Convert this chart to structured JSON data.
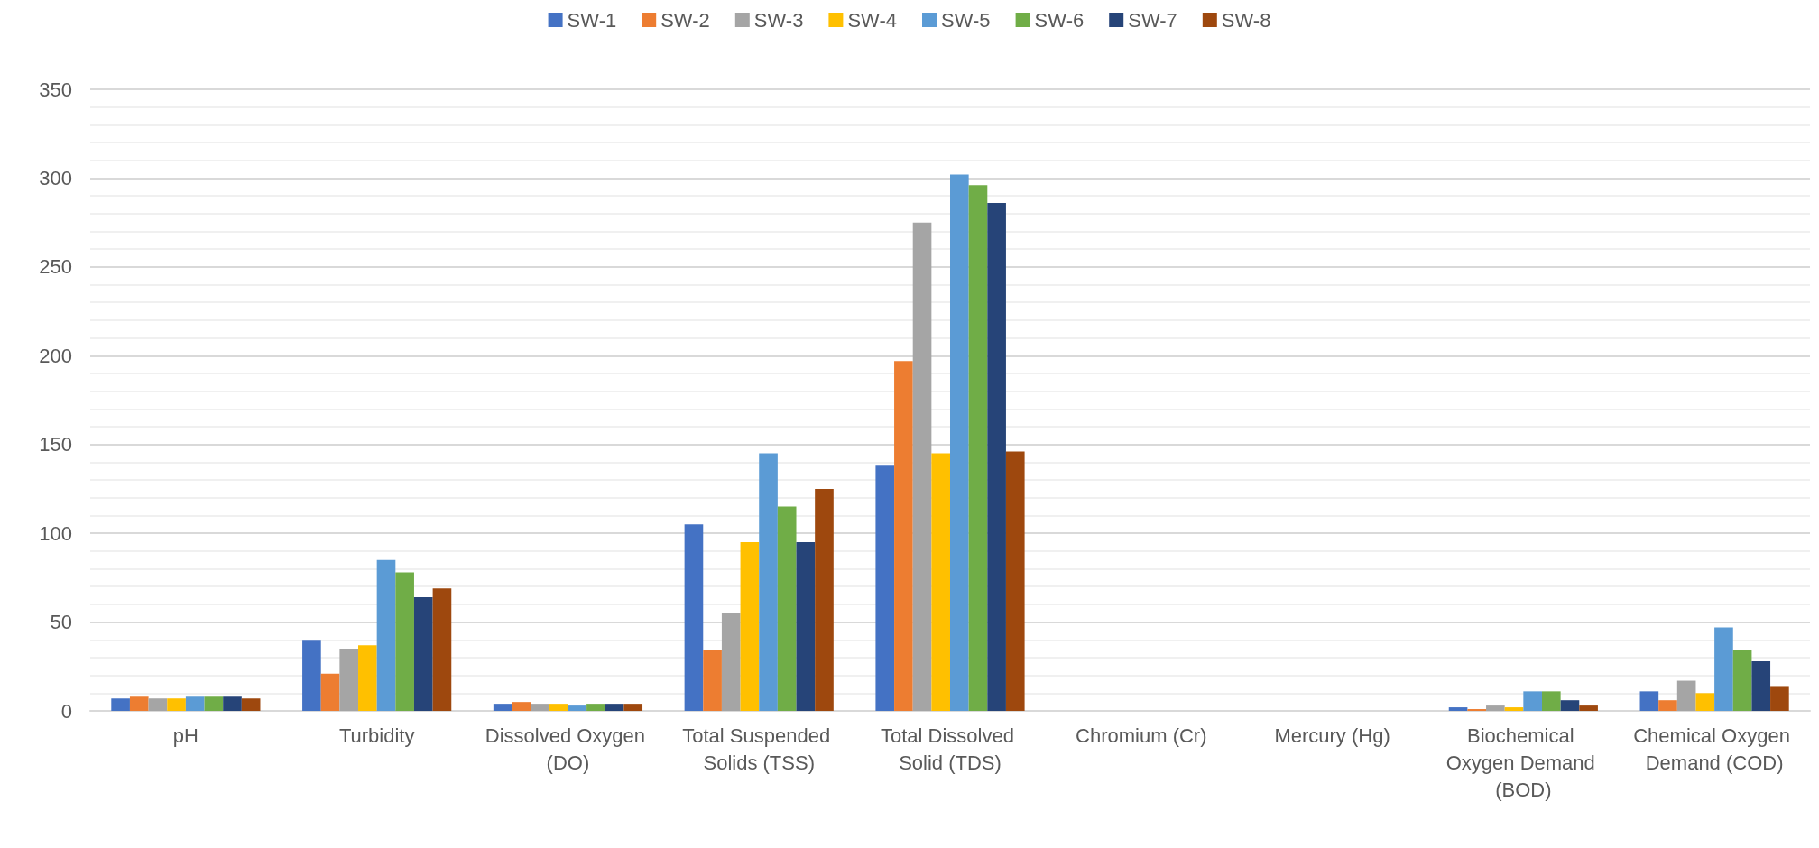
{
  "chart_data": {
    "type": "bar",
    "categories": [
      "pH",
      "Turbidity",
      "Dissolved Oxygen (DO)",
      "Total Suspended Solids (TSS)",
      "Total Dissolved Solid (TDS)",
      "Chromium (Cr)",
      "Mercury (Hg)",
      "Biochemical Oxygen Demand (BOD)",
      "Chemical Oxygen Demand (COD)"
    ],
    "series": [
      {
        "name": "SW-1",
        "color": "#4472c4",
        "values": [
          7,
          40,
          4,
          105,
          138,
          0,
          0,
          2,
          11
        ]
      },
      {
        "name": "SW-2",
        "color": "#ed7d31",
        "values": [
          8,
          21,
          5,
          34,
          197,
          0,
          0,
          1,
          6
        ]
      },
      {
        "name": "SW-3",
        "color": "#a5a5a5",
        "values": [
          7,
          35,
          4,
          55,
          275,
          0,
          0,
          3,
          17
        ]
      },
      {
        "name": "SW-4",
        "color": "#ffc000",
        "values": [
          7,
          37,
          4,
          95,
          145,
          0,
          0,
          2,
          10
        ]
      },
      {
        "name": "SW-5",
        "color": "#5b9bd5",
        "values": [
          8,
          85,
          3,
          145,
          302,
          0,
          0,
          11,
          47
        ]
      },
      {
        "name": "SW-6",
        "color": "#70ad47",
        "values": [
          8,
          78,
          4,
          115,
          296,
          0,
          0,
          11,
          34
        ]
      },
      {
        "name": "SW-7",
        "color": "#264478",
        "values": [
          8,
          64,
          4,
          95,
          286,
          0,
          0,
          6,
          28
        ]
      },
      {
        "name": "SW-8",
        "color": "#9e480e",
        "values": [
          7,
          69,
          4,
          125,
          146,
          0,
          0,
          3,
          14
        ]
      }
    ],
    "ylim": [
      0,
      350
    ],
    "yticks": [
      0,
      50,
      100,
      150,
      200,
      250,
      300,
      350
    ],
    "grid": "y",
    "legend": "top"
  }
}
